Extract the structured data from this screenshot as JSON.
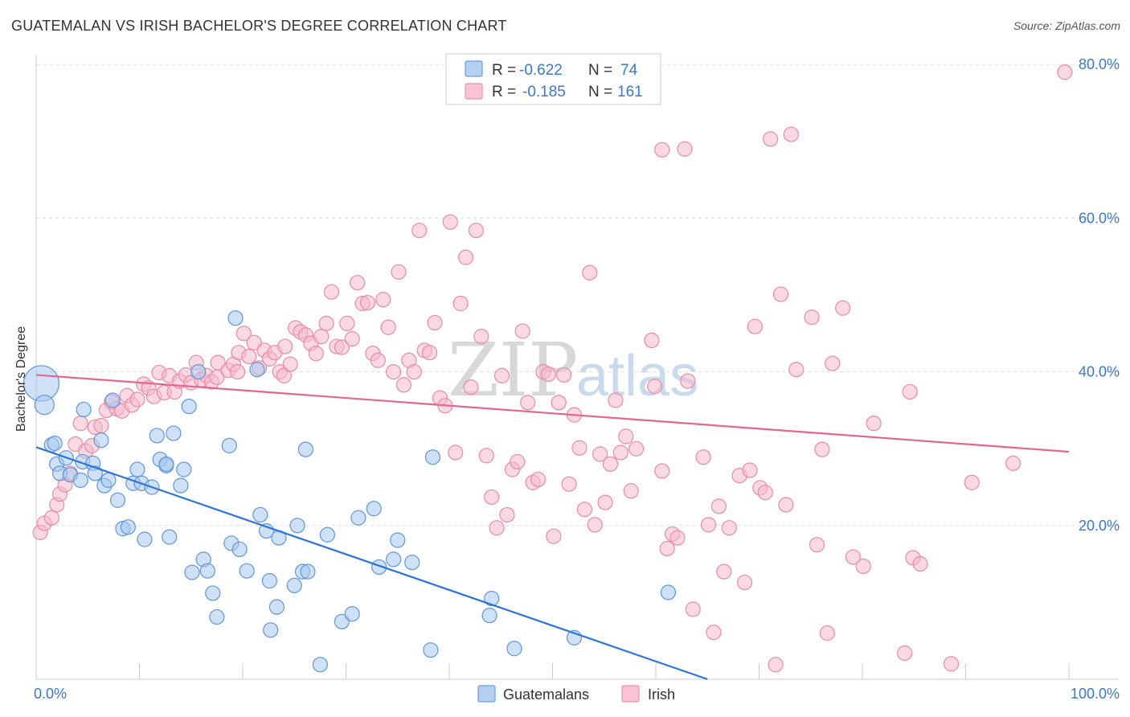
{
  "title": "GUATEMALAN VS IRISH BACHELOR'S DEGREE CORRELATION CHART",
  "source": "Source: ZipAtlas.com",
  "watermark": {
    "zip": "ZIP",
    "atlas": "atlas"
  },
  "colors": {
    "blue_fill": "#a8c8ef",
    "blue_stroke": "#5f96dc",
    "blue_line": "#2d74d4",
    "pink_fill": "#f7b9cc",
    "pink_stroke": "#e98aa8",
    "pink_line": "#e36590",
    "axis_label": "#3a78c8",
    "grid": "#dddddd"
  },
  "legend_top": {
    "r_label": "R =",
    "n_label": "N =",
    "rows": [
      {
        "series": "Guatemalans",
        "r": "-0.622",
        "n": "74"
      },
      {
        "series": "Irish",
        "r": "-0.185",
        "n": "161"
      }
    ]
  },
  "chart_data": {
    "type": "scatter",
    "title": "GUATEMALAN VS IRISH BACHELOR'S DEGREE CORRELATION CHART",
    "xlabel": "",
    "ylabel": "Bachelor's Degree",
    "xlim": [
      0,
      100
    ],
    "ylim": [
      0,
      80
    ],
    "x_tick_labels": [
      "0.0%",
      "100.0%"
    ],
    "y_ticks": [
      20,
      40,
      60,
      80
    ],
    "y_tick_labels": [
      "20.0%",
      "40.0%",
      "60.0%",
      "80.0%"
    ],
    "legend": [
      "Guatemalans",
      "Irish"
    ],
    "series": [
      {
        "name": "Guatemalans",
        "trend": {
          "x0": 0,
          "y0": 30.2,
          "x1": 65,
          "y1": 0
        },
        "points": [
          [
            0.5,
            38.5,
            22
          ],
          [
            0.8,
            35.7,
            12
          ],
          [
            1.5,
            30.5,
            9
          ],
          [
            1.8,
            30.7,
            9
          ],
          [
            2.0,
            28.0,
            9
          ],
          [
            2.3,
            26.8,
            9
          ],
          [
            2.9,
            28.8,
            9
          ],
          [
            3.3,
            26.6,
            9
          ],
          [
            4.5,
            28.3,
            9
          ],
          [
            4.3,
            25.9,
            9
          ],
          [
            4.6,
            35.1,
            9
          ],
          [
            5.5,
            28.1,
            9
          ],
          [
            5.7,
            26.8,
            9
          ],
          [
            6.3,
            31.1,
            9
          ],
          [
            6.6,
            25.2,
            9
          ],
          [
            7.0,
            25.9,
            9
          ],
          [
            7.4,
            36.3,
            9
          ],
          [
            7.9,
            23.3,
            9
          ],
          [
            8.4,
            19.6,
            9
          ],
          [
            8.9,
            19.8,
            9
          ],
          [
            9.4,
            25.5,
            9
          ],
          [
            9.8,
            27.3,
            9
          ],
          [
            10.2,
            25.5,
            9
          ],
          [
            10.5,
            18.2,
            9
          ],
          [
            11.2,
            25.0,
            9
          ],
          [
            11.7,
            31.7,
            9
          ],
          [
            12.0,
            28.6,
            9
          ],
          [
            12.6,
            27.8,
            9
          ],
          [
            12.9,
            18.5,
            9
          ],
          [
            13.3,
            32.0,
            9
          ],
          [
            14.0,
            25.2,
            9
          ],
          [
            14.3,
            27.3,
            9
          ],
          [
            14.8,
            35.5,
            9
          ],
          [
            15.1,
            13.9,
            9
          ],
          [
            15.7,
            40.0,
            9
          ],
          [
            16.2,
            15.6,
            9
          ],
          [
            16.6,
            14.1,
            9
          ],
          [
            17.1,
            11.2,
            9
          ],
          [
            17.5,
            8.1,
            9
          ],
          [
            18.7,
            30.4,
            9
          ],
          [
            18.9,
            17.7,
            9
          ],
          [
            19.3,
            47.0,
            9
          ],
          [
            19.7,
            16.9,
            9
          ],
          [
            20.4,
            14.1,
            9
          ],
          [
            21.4,
            40.3,
            9
          ],
          [
            21.7,
            21.4,
            9
          ],
          [
            22.3,
            19.3,
            9
          ],
          [
            22.6,
            12.8,
            9
          ],
          [
            22.7,
            6.4,
            9
          ],
          [
            23.3,
            9.4,
            9
          ],
          [
            23.5,
            18.4,
            9
          ],
          [
            25.0,
            12.2,
            9
          ],
          [
            25.3,
            20.0,
            9
          ],
          [
            25.8,
            14.0,
            9
          ],
          [
            26.3,
            14.0,
            9
          ],
          [
            26.1,
            29.9,
            9
          ],
          [
            27.5,
            1.9,
            9
          ],
          [
            28.2,
            18.8,
            9
          ],
          [
            29.6,
            7.5,
            9
          ],
          [
            30.6,
            8.5,
            9
          ],
          [
            31.2,
            21.0,
            9
          ],
          [
            32.7,
            22.2,
            9
          ],
          [
            33.2,
            14.6,
            9
          ],
          [
            34.6,
            15.6,
            9
          ],
          [
            35.0,
            18.1,
            9
          ],
          [
            36.4,
            15.2,
            9
          ],
          [
            38.2,
            3.8,
            9
          ],
          [
            38.4,
            28.9,
            9
          ],
          [
            43.9,
            8.3,
            9
          ],
          [
            44.1,
            10.5,
            9
          ],
          [
            46.3,
            4.0,
            9
          ],
          [
            52.1,
            5.4,
            9
          ],
          [
            61.2,
            11.3,
            9
          ],
          [
            12.6,
            28.0,
            9
          ]
        ]
      },
      {
        "name": "Irish",
        "trend": {
          "x0": 0,
          "y0": 39.6,
          "x1": 100,
          "y1": 29.6
        },
        "points": [
          [
            0.4,
            19.1,
            9
          ],
          [
            0.8,
            20.3,
            9
          ],
          [
            1.5,
            21.0,
            9
          ],
          [
            2.0,
            22.7,
            9
          ],
          [
            2.3,
            24.1,
            9
          ],
          [
            2.8,
            25.3,
            9
          ],
          [
            3.3,
            26.8,
            9
          ],
          [
            3.8,
            30.6,
            9
          ],
          [
            4.3,
            33.3,
            9
          ],
          [
            4.8,
            29.7,
            9
          ],
          [
            5.4,
            30.4,
            9
          ],
          [
            5.7,
            32.8,
            9
          ],
          [
            6.3,
            33.0,
            9
          ],
          [
            6.8,
            35.0,
            9
          ],
          [
            7.3,
            36.1,
            9
          ],
          [
            7.8,
            35.2,
            9
          ],
          [
            8.3,
            34.9,
            9
          ],
          [
            8.8,
            36.9,
            9
          ],
          [
            9.3,
            35.7,
            9
          ],
          [
            9.8,
            36.4,
            9
          ],
          [
            10.4,
            38.4,
            9
          ],
          [
            10.9,
            37.9,
            9
          ],
          [
            11.4,
            36.8,
            9
          ],
          [
            11.9,
            39.9,
            9
          ],
          [
            12.4,
            37.3,
            9
          ],
          [
            12.9,
            39.5,
            9
          ],
          [
            13.4,
            37.4,
            9
          ],
          [
            13.9,
            38.8,
            9
          ],
          [
            14.5,
            39.6,
            9
          ],
          [
            15.0,
            38.6,
            9
          ],
          [
            15.5,
            41.2,
            9
          ],
          [
            16.0,
            39.0,
            9
          ],
          [
            16.5,
            39.5,
            9
          ],
          [
            17.0,
            38.7,
            9
          ],
          [
            17.5,
            39.3,
            9
          ],
          [
            17.6,
            41.2,
            9
          ],
          [
            18.6,
            40.2,
            9
          ],
          [
            19.1,
            41.0,
            9
          ],
          [
            19.5,
            40.0,
            9
          ],
          [
            19.6,
            42.5,
            9
          ],
          [
            20.1,
            45.0,
            9
          ],
          [
            20.6,
            42.0,
            9
          ],
          [
            21.1,
            43.8,
            9
          ],
          [
            21.6,
            40.5,
            9
          ],
          [
            22.1,
            42.8,
            9
          ],
          [
            22.6,
            41.7,
            9
          ],
          [
            23.1,
            42.5,
            9
          ],
          [
            23.6,
            40.0,
            9
          ],
          [
            24.0,
            39.5,
            9
          ],
          [
            24.1,
            43.3,
            9
          ],
          [
            24.6,
            41.0,
            9
          ],
          [
            25.1,
            45.7,
            9
          ],
          [
            25.6,
            45.2,
            9
          ],
          [
            26.1,
            44.8,
            9
          ],
          [
            26.6,
            43.7,
            9
          ],
          [
            27.1,
            42.4,
            9
          ],
          [
            27.6,
            44.6,
            9
          ],
          [
            28.1,
            46.3,
            9
          ],
          [
            28.6,
            50.4,
            9
          ],
          [
            29.1,
            43.3,
            9
          ],
          [
            29.6,
            43.2,
            9
          ],
          [
            30.1,
            46.3,
            9
          ],
          [
            30.6,
            44.3,
            9
          ],
          [
            31.1,
            51.6,
            9
          ],
          [
            31.6,
            48.9,
            9
          ],
          [
            32.1,
            49.0,
            9
          ],
          [
            32.6,
            42.4,
            9
          ],
          [
            33.1,
            41.5,
            9
          ],
          [
            33.6,
            49.4,
            9
          ],
          [
            34.1,
            45.8,
            9
          ],
          [
            34.6,
            40.0,
            9
          ],
          [
            35.1,
            53.0,
            9
          ],
          [
            35.6,
            38.3,
            9
          ],
          [
            36.1,
            41.5,
            9
          ],
          [
            36.6,
            40.0,
            9
          ],
          [
            37.1,
            58.4,
            9
          ],
          [
            37.6,
            42.8,
            9
          ],
          [
            38.1,
            42.5,
            9
          ],
          [
            38.6,
            46.4,
            9
          ],
          [
            39.1,
            36.6,
            9
          ],
          [
            39.6,
            35.6,
            9
          ],
          [
            40.1,
            59.5,
            9
          ],
          [
            40.6,
            29.5,
            9
          ],
          [
            41.1,
            48.9,
            9
          ],
          [
            41.6,
            54.9,
            9
          ],
          [
            42.1,
            38.0,
            9
          ],
          [
            42.6,
            58.4,
            9
          ],
          [
            43.1,
            44.6,
            9
          ],
          [
            43.6,
            29.1,
            9
          ],
          [
            44.1,
            23.7,
            9
          ],
          [
            44.6,
            19.7,
            9
          ],
          [
            45.1,
            39.5,
            9
          ],
          [
            45.6,
            21.4,
            9
          ],
          [
            46.1,
            27.3,
            9
          ],
          [
            46.6,
            28.3,
            9
          ],
          [
            47.1,
            45.3,
            9
          ],
          [
            47.6,
            36.0,
            9
          ],
          [
            48.1,
            25.6,
            9
          ],
          [
            48.6,
            26.0,
            9
          ],
          [
            49.1,
            40.0,
            9
          ],
          [
            49.6,
            39.7,
            9
          ],
          [
            50.1,
            18.6,
            9
          ],
          [
            50.6,
            36.0,
            9
          ],
          [
            51.1,
            39.6,
            9
          ],
          [
            51.6,
            25.4,
            9
          ],
          [
            52.1,
            34.4,
            9
          ],
          [
            52.6,
            30.1,
            9
          ],
          [
            53.1,
            22.1,
            9
          ],
          [
            53.6,
            52.9,
            9
          ],
          [
            54.1,
            20.1,
            9
          ],
          [
            54.6,
            29.3,
            9
          ],
          [
            55.1,
            23.0,
            9
          ],
          [
            55.6,
            28.0,
            9
          ],
          [
            56.1,
            36.3,
            9
          ],
          [
            56.6,
            29.5,
            9
          ],
          [
            57.1,
            31.6,
            9
          ],
          [
            57.6,
            24.5,
            9
          ],
          [
            58.1,
            30.0,
            9
          ],
          [
            59.6,
            44.1,
            9
          ],
          [
            59.9,
            38.1,
            9
          ],
          [
            60.6,
            68.9,
            9
          ],
          [
            60.6,
            27.1,
            9
          ],
          [
            61.1,
            17.0,
            9
          ],
          [
            61.6,
            18.9,
            9
          ],
          [
            62.1,
            18.4,
            9
          ],
          [
            62.8,
            69.0,
            9
          ],
          [
            63.1,
            38.8,
            9
          ],
          [
            63.6,
            9.1,
            9
          ],
          [
            64.6,
            28.9,
            9
          ],
          [
            65.1,
            20.1,
            9
          ],
          [
            65.6,
            6.1,
            9
          ],
          [
            66.1,
            22.5,
            9
          ],
          [
            66.6,
            14.0,
            9
          ],
          [
            67.1,
            19.7,
            9
          ],
          [
            68.1,
            26.5,
            9
          ],
          [
            68.6,
            12.6,
            9
          ],
          [
            69.1,
            27.2,
            9
          ],
          [
            69.6,
            45.9,
            9
          ],
          [
            70.1,
            24.9,
            9
          ],
          [
            70.6,
            24.3,
            9
          ],
          [
            71.1,
            70.3,
            9
          ],
          [
            71.6,
            1.9,
            9
          ],
          [
            72.1,
            50.1,
            9
          ],
          [
            72.6,
            22.7,
            9
          ],
          [
            73.1,
            70.9,
            9
          ],
          [
            73.6,
            40.3,
            9
          ],
          [
            75.1,
            47.1,
            9
          ],
          [
            75.6,
            17.5,
            9
          ],
          [
            76.1,
            29.9,
            9
          ],
          [
            76.6,
            6.0,
            9
          ],
          [
            77.1,
            41.1,
            9
          ],
          [
            78.1,
            48.3,
            9
          ],
          [
            79.1,
            15.9,
            9
          ],
          [
            80.1,
            14.7,
            9
          ],
          [
            81.1,
            33.3,
            9
          ],
          [
            84.1,
            3.4,
            9
          ],
          [
            84.6,
            37.4,
            9
          ],
          [
            84.9,
            15.8,
            9
          ],
          [
            85.6,
            15.0,
            9
          ],
          [
            90.6,
            25.6,
            9
          ],
          [
            94.6,
            28.1,
            9
          ],
          [
            99.6,
            79.0,
            9
          ],
          [
            88.6,
            2.0,
            9
          ]
        ]
      }
    ]
  }
}
